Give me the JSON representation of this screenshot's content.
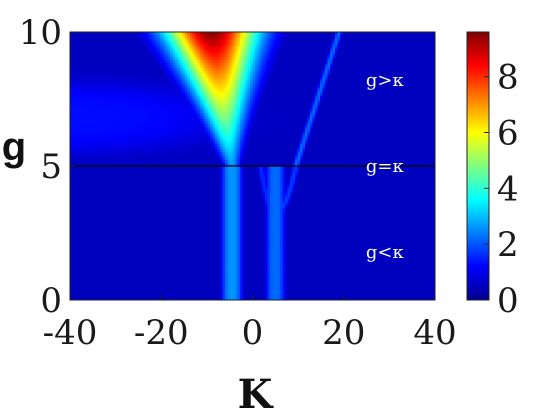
{
  "chart_data": {
    "type": "heatmap",
    "xlabel": "K",
    "ylabel": "g",
    "xlim": [
      -40,
      40
    ],
    "ylim": [
      0,
      10
    ],
    "xticks": [
      -40,
      -20,
      0,
      20,
      40
    ],
    "yticks": [
      0,
      5,
      10
    ],
    "xtick_labels": [
      "-40",
      "-20",
      "0",
      "20",
      "40"
    ],
    "ytick_labels": [
      "0",
      "5",
      "10"
    ],
    "colorbar": {
      "range": [
        0,
        9.6
      ],
      "ticks": [
        0,
        2,
        4,
        6,
        8
      ],
      "tick_labels": [
        "0",
        "2",
        "4",
        "6",
        "8"
      ],
      "colormap": "jet"
    },
    "reference_line": {
      "y": 5,
      "color": "#000000"
    },
    "annotations": [
      {
        "text": "g>κ",
        "x": 29,
        "y": 8.2
      },
      {
        "text": "g=κ",
        "x": 29,
        "y": 5.0
      },
      {
        "text": "g<κ",
        "x": 29,
        "y": 1.8
      }
    ],
    "features": {
      "left_branch": {
        "K_at_g10": -9,
        "peak_value": 9.6,
        "converges_to_K": -4.5,
        "below_g5_band": {
          "K_center": -4.5,
          "value": 2.6
        }
      },
      "right_branch": {
        "K_at_g10": 19,
        "min_point": {
          "K": 5,
          "g": 3.2
        },
        "below_g5_band": {
          "K_center": 5,
          "value": 2.2
        }
      },
      "left_halo": {
        "K_center": -40,
        "g_center": 6.8,
        "value": 1.3
      },
      "background_value": 0.6
    }
  }
}
